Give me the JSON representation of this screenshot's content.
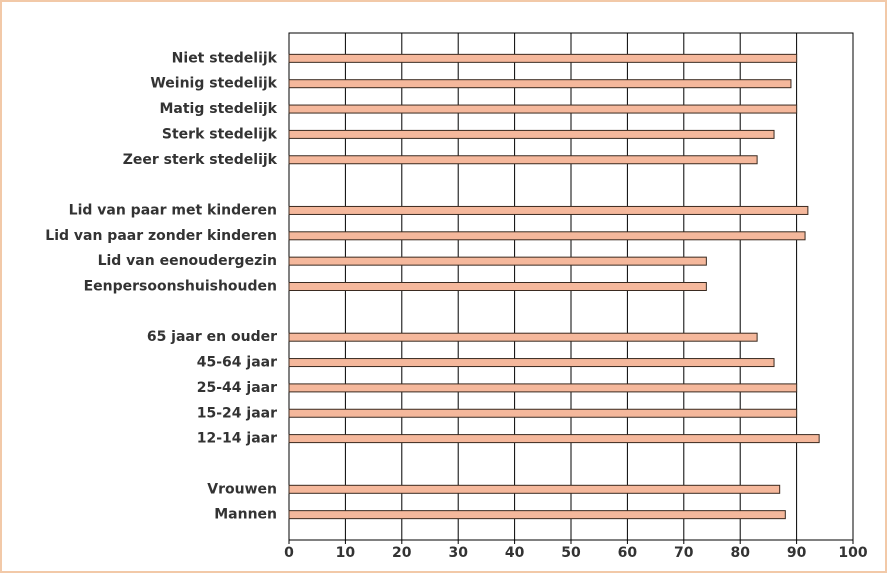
{
  "chart_data": {
    "type": "bar",
    "orientation": "horizontal",
    "categories": [
      "Niet stedelijk",
      "Weinig stedelijk",
      "Matig stedelijk",
      "Sterk stedelijk",
      "Zeer sterk stedelijk",
      null,
      "Lid van paar met kinderen",
      "Lid van paar zonder kinderen",
      "Lid van eenoudergezin",
      "Eenpersoonshuishouden",
      null,
      "65 jaar en ouder",
      "45-64 jaar",
      "25-44 jaar",
      "15-24 jaar",
      "12-14 jaar",
      null,
      "Vrouwen",
      "Mannen"
    ],
    "values": [
      90,
      89,
      90,
      86,
      83,
      null,
      92,
      91.5,
      74,
      74,
      null,
      83,
      86,
      90,
      90,
      94,
      null,
      87,
      88
    ],
    "color": "#f5b89c",
    "xlim": [
      0,
      100
    ],
    "xticks": [
      0,
      10,
      20,
      30,
      40,
      50,
      60,
      70,
      80,
      90,
      100
    ],
    "grid": true
  }
}
